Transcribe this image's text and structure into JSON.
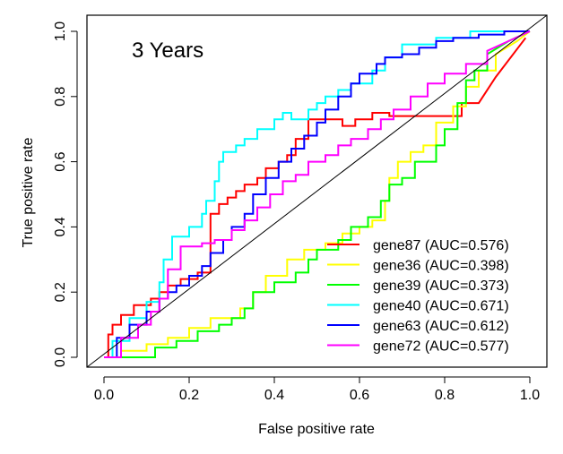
{
  "chart_data": {
    "type": "line",
    "title": "3 Years",
    "xlabel": "False positive rate",
    "ylabel": "True positive rate",
    "xlim": [
      0,
      1
    ],
    "ylim": [
      0,
      1
    ],
    "xticks": [
      "0.0",
      "0.2",
      "0.4",
      "0.6",
      "0.8",
      "1.0"
    ],
    "yticks": [
      "0.0",
      "0.2",
      "0.4",
      "0.6",
      "0.8",
      "1.0"
    ],
    "legend_position": "bottom-right",
    "reference_line": {
      "from": [
        0,
        0
      ],
      "to": [
        1,
        1
      ],
      "color": "#000000"
    },
    "series": [
      {
        "name": "gene87",
        "auc_label": "gene87 (AUC=0.576)",
        "color": "#ff0000",
        "x": [
          0.0,
          0.01,
          0.01,
          0.02,
          0.02,
          0.04,
          0.04,
          0.07,
          0.07,
          0.11,
          0.11,
          0.13,
          0.13,
          0.15,
          0.15,
          0.18,
          0.18,
          0.22,
          0.22,
          0.25,
          0.25,
          0.27,
          0.27,
          0.29,
          0.29,
          0.31,
          0.31,
          0.33,
          0.33,
          0.36,
          0.36,
          0.38,
          0.38,
          0.41,
          0.41,
          0.43,
          0.43,
          0.45,
          0.45,
          0.48,
          0.48,
          0.5,
          0.5,
          0.56,
          0.56,
          0.59,
          0.59,
          0.63,
          0.63,
          0.67,
          0.67,
          0.84,
          0.84,
          0.88,
          0.92,
          0.99
        ],
        "y": [
          0.0,
          0.0,
          0.07,
          0.07,
          0.1,
          0.1,
          0.13,
          0.13,
          0.16,
          0.16,
          0.18,
          0.18,
          0.2,
          0.2,
          0.22,
          0.22,
          0.24,
          0.24,
          0.26,
          0.26,
          0.44,
          0.44,
          0.47,
          0.47,
          0.49,
          0.49,
          0.51,
          0.51,
          0.53,
          0.53,
          0.55,
          0.55,
          0.58,
          0.58,
          0.6,
          0.6,
          0.62,
          0.62,
          0.67,
          0.67,
          0.73,
          0.73,
          0.73,
          0.73,
          0.71,
          0.71,
          0.73,
          0.73,
          0.75,
          0.75,
          0.74,
          0.74,
          0.78,
          0.78,
          0.86,
          0.98
        ]
      },
      {
        "name": "gene36",
        "auc_label": "gene36 (AUC=0.398)",
        "color": "#ffff00",
        "x": [
          0.02,
          0.04,
          0.04,
          0.1,
          0.1,
          0.15,
          0.15,
          0.2,
          0.2,
          0.25,
          0.25,
          0.32,
          0.32,
          0.35,
          0.35,
          0.38,
          0.38,
          0.43,
          0.43,
          0.47,
          0.47,
          0.52,
          0.52,
          0.56,
          0.56,
          0.6,
          0.6,
          0.63,
          0.63,
          0.66,
          0.66,
          0.67,
          0.67,
          0.69,
          0.69,
          0.72,
          0.72,
          0.75,
          0.75,
          0.78,
          0.78,
          0.82,
          0.82,
          0.85,
          0.85,
          0.88,
          0.88,
          0.92,
          0.92,
          0.97,
          1.0
        ],
        "y": [
          0.0,
          0.0,
          0.02,
          0.02,
          0.04,
          0.04,
          0.06,
          0.06,
          0.09,
          0.09,
          0.12,
          0.12,
          0.15,
          0.15,
          0.2,
          0.2,
          0.25,
          0.25,
          0.3,
          0.3,
          0.33,
          0.33,
          0.35,
          0.35,
          0.38,
          0.38,
          0.4,
          0.4,
          0.42,
          0.42,
          0.48,
          0.48,
          0.55,
          0.55,
          0.6,
          0.6,
          0.63,
          0.63,
          0.65,
          0.65,
          0.72,
          0.72,
          0.77,
          0.77,
          0.83,
          0.83,
          0.88,
          0.88,
          0.93,
          0.97,
          1.0
        ]
      },
      {
        "name": "gene39",
        "auc_label": "gene39 (AUC=0.373)",
        "color": "#00ff00",
        "x": [
          0.0,
          0.12,
          0.12,
          0.17,
          0.17,
          0.22,
          0.22,
          0.27,
          0.27,
          0.3,
          0.3,
          0.33,
          0.33,
          0.35,
          0.35,
          0.4,
          0.4,
          0.45,
          0.45,
          0.48,
          0.48,
          0.5,
          0.5,
          0.55,
          0.55,
          0.58,
          0.58,
          0.62,
          0.62,
          0.65,
          0.65,
          0.67,
          0.67,
          0.7,
          0.7,
          0.73,
          0.73,
          0.78,
          0.78,
          0.8,
          0.8,
          0.83,
          0.83,
          0.85,
          0.85,
          0.87,
          0.87,
          0.9,
          0.9,
          0.95,
          1.0
        ],
        "y": [
          0.0,
          0.0,
          0.03,
          0.03,
          0.05,
          0.05,
          0.08,
          0.08,
          0.1,
          0.1,
          0.12,
          0.12,
          0.15,
          0.15,
          0.2,
          0.2,
          0.23,
          0.23,
          0.26,
          0.26,
          0.3,
          0.3,
          0.33,
          0.33,
          0.36,
          0.36,
          0.4,
          0.4,
          0.43,
          0.43,
          0.48,
          0.48,
          0.53,
          0.53,
          0.55,
          0.55,
          0.6,
          0.6,
          0.65,
          0.65,
          0.7,
          0.7,
          0.78,
          0.78,
          0.85,
          0.85,
          0.88,
          0.88,
          0.93,
          0.97,
          1.0
        ]
      },
      {
        "name": "gene40",
        "auc_label": "gene40 (AUC=0.671)",
        "color": "#00ffff",
        "x": [
          0.0,
          0.02,
          0.02,
          0.06,
          0.06,
          0.1,
          0.1,
          0.13,
          0.13,
          0.14,
          0.14,
          0.16,
          0.16,
          0.2,
          0.2,
          0.23,
          0.23,
          0.24,
          0.24,
          0.26,
          0.26,
          0.27,
          0.27,
          0.28,
          0.28,
          0.31,
          0.31,
          0.33,
          0.33,
          0.36,
          0.36,
          0.4,
          0.4,
          0.42,
          0.42,
          0.44,
          0.44,
          0.48,
          0.48,
          0.5,
          0.5,
          0.52,
          0.52,
          0.55,
          0.55,
          0.58,
          0.58,
          0.63,
          0.63,
          0.66,
          0.66,
          0.7,
          0.7,
          0.73,
          0.73,
          0.78,
          0.78,
          0.86,
          0.86,
          0.95,
          0.95,
          1.0
        ],
        "y": [
          0.0,
          0.0,
          0.05,
          0.05,
          0.12,
          0.12,
          0.17,
          0.17,
          0.23,
          0.23,
          0.3,
          0.3,
          0.37,
          0.37,
          0.4,
          0.4,
          0.44,
          0.44,
          0.48,
          0.48,
          0.54,
          0.54,
          0.6,
          0.6,
          0.63,
          0.63,
          0.65,
          0.65,
          0.67,
          0.67,
          0.7,
          0.7,
          0.73,
          0.73,
          0.75,
          0.75,
          0.73,
          0.73,
          0.76,
          0.76,
          0.78,
          0.78,
          0.8,
          0.8,
          0.82,
          0.82,
          0.84,
          0.84,
          0.88,
          0.88,
          0.92,
          0.92,
          0.96,
          0.96,
          0.96,
          0.96,
          0.98,
          0.98,
          1.0,
          1.0,
          1.0,
          1.0
        ]
      },
      {
        "name": "gene63",
        "auc_label": "gene63 (AUC=0.612)",
        "color": "#0000ff",
        "x": [
          0.0,
          0.03,
          0.03,
          0.06,
          0.06,
          0.1,
          0.1,
          0.13,
          0.13,
          0.15,
          0.15,
          0.17,
          0.17,
          0.2,
          0.2,
          0.23,
          0.23,
          0.25,
          0.25,
          0.28,
          0.28,
          0.3,
          0.3,
          0.33,
          0.33,
          0.35,
          0.35,
          0.38,
          0.38,
          0.41,
          0.41,
          0.44,
          0.44,
          0.47,
          0.47,
          0.5,
          0.5,
          0.52,
          0.52,
          0.55,
          0.55,
          0.58,
          0.58,
          0.6,
          0.6,
          0.64,
          0.64,
          0.66,
          0.66,
          0.7,
          0.7,
          0.74,
          0.74,
          0.78,
          0.78,
          0.82,
          0.82,
          0.88,
          0.88,
          0.94,
          0.94,
          1.0
        ],
        "y": [
          0.0,
          0.0,
          0.06,
          0.06,
          0.1,
          0.1,
          0.14,
          0.14,
          0.18,
          0.18,
          0.2,
          0.2,
          0.22,
          0.22,
          0.25,
          0.25,
          0.28,
          0.28,
          0.32,
          0.32,
          0.36,
          0.36,
          0.4,
          0.4,
          0.44,
          0.44,
          0.5,
          0.5,
          0.55,
          0.55,
          0.6,
          0.6,
          0.64,
          0.64,
          0.68,
          0.68,
          0.72,
          0.72,
          0.76,
          0.76,
          0.8,
          0.8,
          0.84,
          0.84,
          0.87,
          0.87,
          0.9,
          0.9,
          0.92,
          0.92,
          0.93,
          0.93,
          0.95,
          0.95,
          0.97,
          0.97,
          0.98,
          0.98,
          0.99,
          0.99,
          1.0,
          1.0
        ]
      },
      {
        "name": "gene72",
        "auc_label": "gene72 (AUC=0.577)",
        "color": "#ff00ff",
        "x": [
          0.0,
          0.04,
          0.04,
          0.08,
          0.08,
          0.11,
          0.11,
          0.13,
          0.13,
          0.15,
          0.15,
          0.18,
          0.18,
          0.23,
          0.23,
          0.26,
          0.26,
          0.3,
          0.3,
          0.33,
          0.33,
          0.36,
          0.36,
          0.39,
          0.39,
          0.42,
          0.42,
          0.45,
          0.45,
          0.48,
          0.48,
          0.52,
          0.52,
          0.55,
          0.55,
          0.58,
          0.58,
          0.62,
          0.62,
          0.65,
          0.65,
          0.68,
          0.68,
          0.72,
          0.72,
          0.76,
          0.76,
          0.8,
          0.8,
          0.85,
          0.85,
          0.9,
          0.9,
          0.95,
          1.0
        ],
        "y": [
          0.0,
          0.0,
          0.06,
          0.06,
          0.1,
          0.1,
          0.14,
          0.14,
          0.18,
          0.18,
          0.27,
          0.27,
          0.34,
          0.34,
          0.35,
          0.35,
          0.36,
          0.36,
          0.39,
          0.39,
          0.42,
          0.42,
          0.46,
          0.46,
          0.5,
          0.5,
          0.54,
          0.54,
          0.56,
          0.56,
          0.6,
          0.6,
          0.62,
          0.62,
          0.65,
          0.65,
          0.67,
          0.67,
          0.7,
          0.7,
          0.73,
          0.73,
          0.76,
          0.76,
          0.8,
          0.8,
          0.84,
          0.84,
          0.87,
          0.87,
          0.9,
          0.9,
          0.94,
          0.97,
          1.0
        ]
      }
    ]
  }
}
